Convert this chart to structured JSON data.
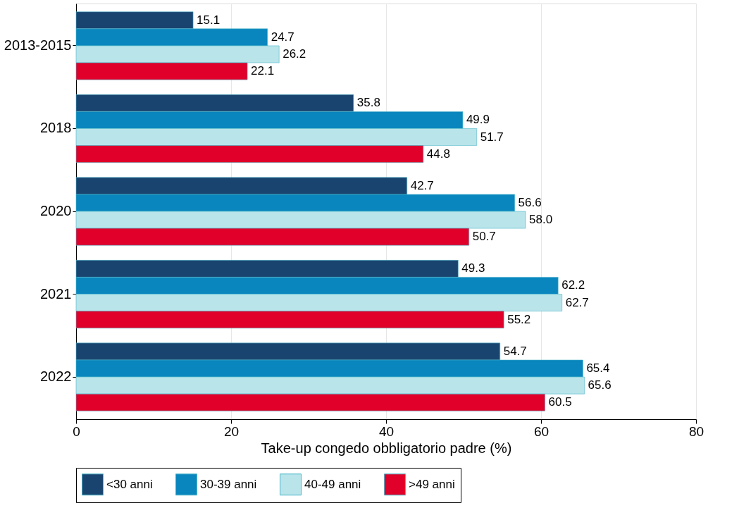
{
  "chart_data": {
    "type": "bar",
    "orientation": "horizontal",
    "xlabel": "Take-up congedo obbligatorio padre (%)",
    "categories": [
      "2013-2015",
      "2018",
      "2020",
      "2021",
      "2022"
    ],
    "series": [
      {
        "name": "<30 anni",
        "color": "#1a4470",
        "values": [
          15.1,
          35.8,
          42.7,
          49.3,
          54.7
        ],
        "value_labels": [
          "15.1",
          "35.8",
          "42.7",
          "49.3",
          "54.7"
        ]
      },
      {
        "name": "30-39 anni",
        "color": "#0a86be",
        "values": [
          24.7,
          49.9,
          56.6,
          62.2,
          65.4
        ],
        "value_labels": [
          "24.7",
          "49.9",
          "56.6",
          "62.2",
          "65.4"
        ]
      },
      {
        "name": "40-49 anni",
        "color": "#b8e4ea",
        "values": [
          26.2,
          51.7,
          58.0,
          62.7,
          65.6
        ],
        "value_labels": [
          "26.2",
          "51.7",
          "58.0",
          "62.7",
          "65.6"
        ]
      },
      {
        "name": ">49 anni",
        "color": "#e0002a",
        "values": [
          22.1,
          44.8,
          50.7,
          55.2,
          60.5
        ],
        "value_labels": [
          "22.1",
          "44.8",
          "50.7",
          "55.2",
          "60.5"
        ]
      }
    ],
    "xlim": [
      0,
      80
    ],
    "xticks": [
      0,
      20,
      40,
      60,
      80
    ],
    "grid": "x",
    "legend": "bottom"
  }
}
